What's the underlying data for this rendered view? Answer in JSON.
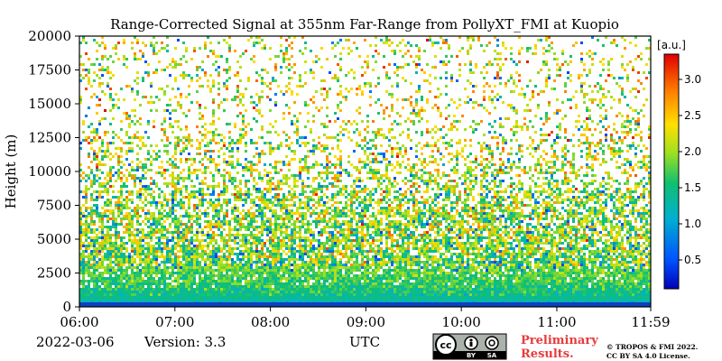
{
  "chart_data": {
    "type": "heatmap",
    "title": "Range-Corrected Signal at 355nm Far-Range from PollyXT_FMI at Kuopio",
    "xlabel": "UTC",
    "ylabel": "Height (m)",
    "x_tick_labels": [
      "06:00",
      "07:00",
      "08:00",
      "09:00",
      "10:00",
      "11:00",
      "11:59"
    ],
    "x_tick_hours": [
      6.0,
      7.0,
      8.0,
      9.0,
      10.0,
      11.0,
      11.9833
    ],
    "xlim_hours": [
      6.0,
      11.9833
    ],
    "y_ticks": [
      0,
      2500,
      5000,
      7500,
      10000,
      12500,
      15000,
      17500,
      20000
    ],
    "ylim": [
      0,
      20000
    ],
    "colorbar": {
      "unit_label": "[a.u.]",
      "ticks": [
        0.5,
        1.0,
        1.5,
        2.0,
        2.5,
        3.0
      ],
      "range": [
        0.1,
        3.35
      ],
      "colormap": "jet"
    },
    "field_description_values": [
      {
        "height": 0,
        "signal": 0.6
      },
      {
        "height": 500,
        "signal": 1.35
      },
      {
        "height": 1500,
        "signal": 1.6
      },
      {
        "height": 3000,
        "signal": 1.85
      },
      {
        "height": 5000,
        "signal": 2.0
      },
      {
        "height": 7500,
        "signal": 2.0
      },
      {
        "height": 10000,
        "signal": 2.1
      },
      {
        "height": 12500,
        "signal": 2.2
      }
    ]
  },
  "footer": {
    "date": "2022-03-06",
    "version": "Version: 3.3",
    "preliminary_line1": "Preliminary",
    "preliminary_line2": "Results.",
    "license_line1": "© TROPOS & FMI 2022.",
    "license_line2": "CC BY SA 4.0 License.",
    "cc_badge_cc": "cc",
    "cc_badge_by": "BY",
    "cc_badge_sa": "SA"
  }
}
